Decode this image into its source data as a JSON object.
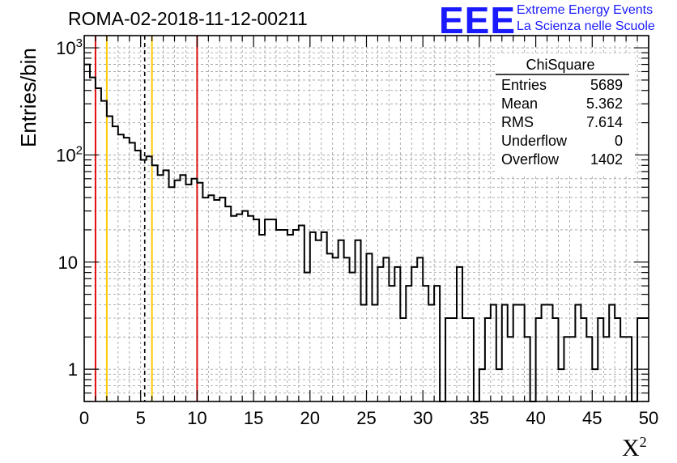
{
  "title": "ROMA-02-2018-11-12-00211",
  "logo": {
    "mark": "EEE",
    "line1": "Extreme Energy Events",
    "line2": "La Scienza nelle Scuole"
  },
  "axes": {
    "xlabel_base": "X",
    "xlabel_sup": "2",
    "ylabel": "Entries/bin"
  },
  "stats_box": {
    "title": "ChiSquare",
    "rows": [
      {
        "label": "Entries",
        "value": "5689"
      },
      {
        "label": "Mean",
        "value": "5.362"
      },
      {
        "label": "RMS",
        "value": "7.614"
      },
      {
        "label": "Underflow",
        "value": "0"
      },
      {
        "label": "Overflow",
        "value": "1402"
      }
    ]
  },
  "chart_data": {
    "type": "histogram",
    "x_range": [
      0,
      50
    ],
    "y_range": [
      0.5,
      1300
    ],
    "y_scale": "log",
    "bin_width": 0.5,
    "x_ticks": [
      0,
      5,
      10,
      15,
      20,
      25,
      30,
      35,
      40,
      45,
      50
    ],
    "x_tick_labels": [
      "0",
      "5",
      "10",
      "15",
      "20",
      "25",
      "30",
      "35",
      "40",
      "45",
      "50"
    ],
    "y_ticks": [
      1,
      10,
      100,
      1000
    ],
    "y_tick_labels": [
      "1",
      "10",
      "10^2",
      "10^3"
    ],
    "grid": true,
    "values": [
      700,
      530,
      420,
      320,
      230,
      185,
      155,
      145,
      130,
      110,
      90,
      97,
      80,
      65,
      72,
      50,
      58,
      65,
      53,
      60,
      55,
      40,
      42,
      38,
      40,
      33,
      27,
      28,
      30,
      27,
      25,
      18,
      25,
      25,
      20,
      20,
      18,
      20,
      22,
      8,
      19,
      16,
      19,
      12,
      11,
      16,
      11,
      8,
      16,
      4,
      12,
      4,
      9,
      11,
      6,
      9,
      3,
      6,
      9,
      11,
      6,
      4,
      6,
      0,
      3,
      3,
      9,
      3,
      3,
      0,
      1,
      3,
      4,
      1,
      4,
      2,
      4,
      4,
      2,
      0,
      3,
      4,
      4,
      3,
      1,
      2,
      2,
      4,
      3,
      2,
      1,
      3,
      2,
      4,
      3,
      2,
      2,
      0,
      3,
      3
    ],
    "vertical_lines": [
      {
        "x": 1,
        "color": "#e01010",
        "style": "solid"
      },
      {
        "x": 2,
        "color": "#ffcc00",
        "style": "solid"
      },
      {
        "x": 5.36,
        "color": "#000000",
        "style": "dashed"
      },
      {
        "x": 6,
        "color": "#ffcc00",
        "style": "solid"
      },
      {
        "x": 10,
        "color": "#e01010",
        "style": "solid"
      }
    ]
  }
}
